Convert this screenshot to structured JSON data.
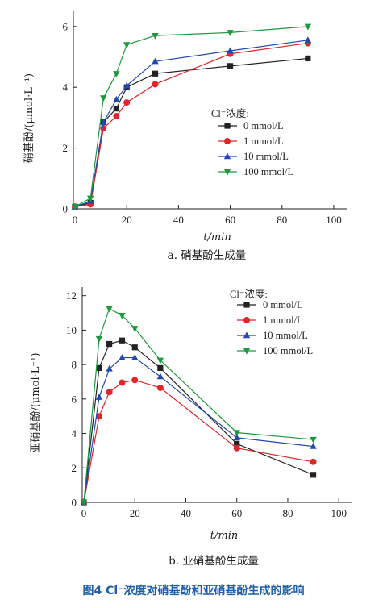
{
  "figure_caption": "图4  Cl⁻浓度对硝基酚和亚硝基酚生成的影响",
  "chart_data": [
    {
      "type": "line",
      "caption": "a. 硝基酚生成量",
      "xlabel": "t/min",
      "ylabel": "硝基酚/(μmol·L⁻¹)",
      "xlim": [
        0,
        105
      ],
      "ylim": [
        0,
        6.5
      ],
      "xticks": [
        0,
        20,
        40,
        60,
        80,
        100
      ],
      "yticks": [
        0,
        2,
        4,
        6
      ],
      "grid": false,
      "legend_title": "Cl⁻浓度:",
      "legend_position": "center-right",
      "x": [
        0,
        6,
        11,
        16,
        20,
        31,
        60,
        90
      ],
      "series": [
        {
          "name": "0 mmol/L",
          "color": "#222222",
          "marker": "square",
          "values": [
            0.07,
            0.2,
            2.85,
            3.3,
            4.0,
            4.45,
            4.7,
            4.95
          ]
        },
        {
          "name": "1 mmol/L",
          "color": "#e0262b",
          "marker": "circle",
          "values": [
            0.07,
            0.15,
            2.65,
            3.05,
            3.5,
            4.1,
            5.1,
            5.45
          ]
        },
        {
          "name": "10 mmol/L",
          "color": "#2448b0",
          "marker": "triangle-up",
          "values": [
            0.07,
            0.25,
            2.85,
            3.6,
            4.05,
            4.85,
            5.2,
            5.55
          ]
        },
        {
          "name": "100 mmol/L",
          "color": "#1a9a3c",
          "marker": "triangle-down",
          "values": [
            0.07,
            0.35,
            3.65,
            4.45,
            5.4,
            5.7,
            5.8,
            6.0
          ]
        }
      ]
    },
    {
      "type": "line",
      "caption": "b. 亚硝基酚生成量",
      "xlabel": "t/min",
      "ylabel": "亚硝基酚/(μmol·L⁻¹)",
      "xlim": [
        0,
        105
      ],
      "ylim": [
        0,
        12.5
      ],
      "xticks": [
        0,
        20,
        40,
        60,
        80,
        100
      ],
      "yticks": [
        0,
        2,
        4,
        6,
        8,
        10,
        12
      ],
      "grid": false,
      "legend_title": "Cl⁻浓度:",
      "legend_position": "top-right",
      "x": [
        0,
        6,
        10,
        15,
        20,
        30,
        60,
        90
      ],
      "series": [
        {
          "name": "0 mmol/L",
          "color": "#222222",
          "marker": "square",
          "values": [
            0,
            7.8,
            9.2,
            9.4,
            9.0,
            7.8,
            3.4,
            1.6
          ]
        },
        {
          "name": "1 mmol/L",
          "color": "#e0262b",
          "marker": "circle",
          "values": [
            0,
            5.0,
            6.4,
            6.95,
            7.1,
            6.65,
            3.15,
            2.35
          ]
        },
        {
          "name": "10 mmol/L",
          "color": "#2448b0",
          "marker": "triangle-up",
          "values": [
            0,
            6.1,
            7.75,
            8.4,
            8.4,
            7.3,
            3.75,
            3.25
          ]
        },
        {
          "name": "100 mmol/L",
          "color": "#1a9a3c",
          "marker": "triangle-down",
          "values": [
            0,
            9.5,
            11.25,
            10.85,
            10.1,
            8.25,
            4.05,
            3.65
          ]
        }
      ]
    }
  ]
}
